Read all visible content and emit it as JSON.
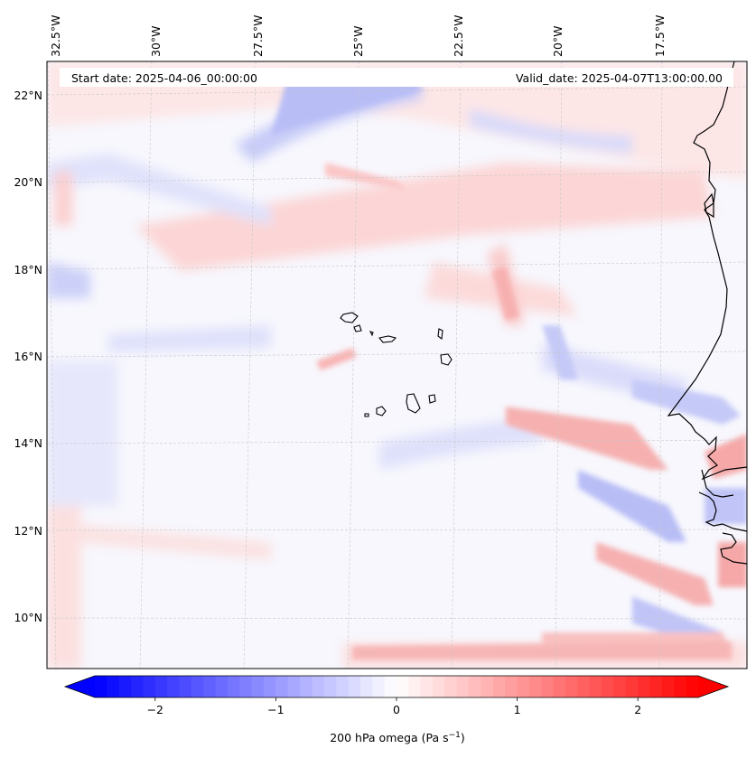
{
  "map": {
    "start_date": "Start date: 2025-04-06_00:00:00",
    "valid_date": "Valid_date: 2025-04-07T13:00:00.00",
    "lon_labels": [
      "32.5°W",
      "30°W",
      "27.5°W",
      "25°W",
      "22.5°W",
      "20°W",
      "17.5°W"
    ],
    "lat_labels": [
      "22°N",
      "20°N",
      "18°N",
      "16°N",
      "14°N",
      "12°N",
      "10°N"
    ]
  },
  "colorbar": {
    "label": "200 hPa omega (Pa s",
    "label_sup": "−1",
    "label_close": ")",
    "ticks": [
      "−2",
      "−1",
      "0",
      "1",
      "2"
    ],
    "tick_values": [
      -2,
      -1,
      0,
      1,
      2
    ],
    "range": [
      -2.5,
      2.5
    ]
  },
  "colors": {
    "neg": "#0000ff",
    "pos": "#ff0000",
    "mid": "#ffffff",
    "coast": "#000000",
    "grid": "#c8c8c8"
  }
}
